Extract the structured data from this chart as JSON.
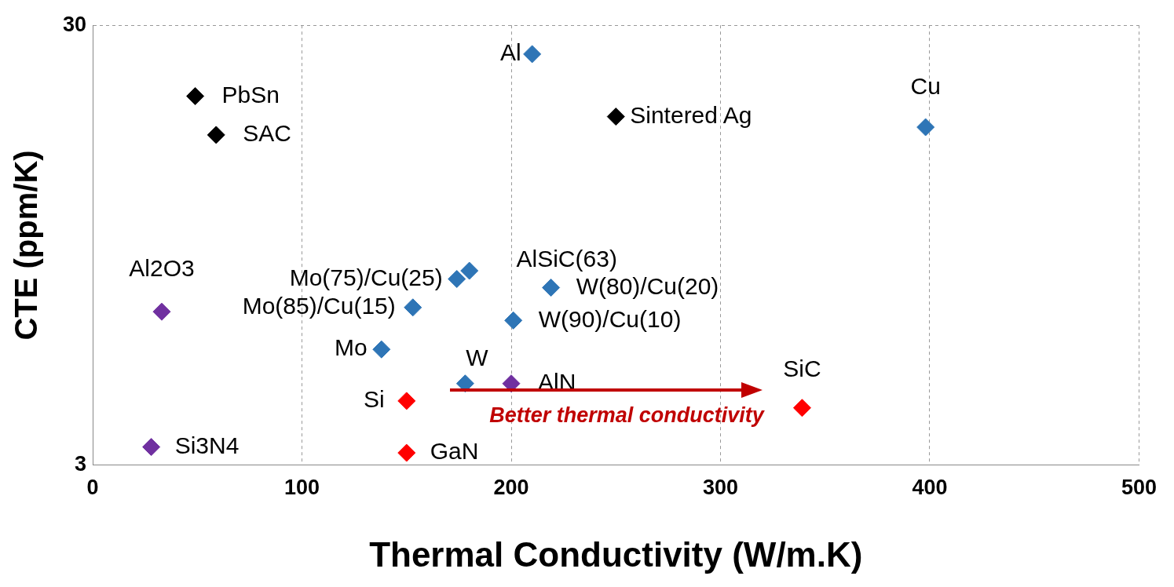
{
  "chart_data": {
    "type": "scatter",
    "xlabel": "Thermal Conductivity (W/m.K)",
    "ylabel": "CTE (ppm/K)",
    "x": [
      210,
      49,
      59,
      250,
      398,
      180,
      174,
      219,
      33,
      153,
      201,
      138,
      178,
      200,
      150,
      339,
      28,
      150
    ],
    "values": [
      25.8,
      20.7,
      16.9,
      18.6,
      17.6,
      8.3,
      7.95,
      7.6,
      6.7,
      6.85,
      6.4,
      5.5,
      4.6,
      4.6,
      4.2,
      4.05,
      3.3,
      3.2
    ],
    "colors": [
      "#2e75b6",
      "#000000",
      "#000000",
      "#000000",
      "#2e75b6",
      "#2e75b6",
      "#2e75b6",
      "#2e75b6",
      "#7030a0",
      "#2e75b6",
      "#2e75b6",
      "#2e75b6",
      "#2e75b6",
      "#7030a0",
      "#ff0000",
      "#ff0000",
      "#7030a0",
      "#ff0000"
    ],
    "xlim": [
      0,
      500
    ],
    "xticks": [
      0,
      100,
      200,
      300,
      400,
      500
    ],
    "ylim": [
      3,
      30
    ],
    "yticks": [
      3,
      30
    ],
    "log": "y",
    "grid": true,
    "marker": "diamond",
    "annotations": [
      {
        "text": "Al",
        "x": 210,
        "y": 25.8
      },
      {
        "text": "PbSn",
        "x": 49,
        "y": 20.7
      },
      {
        "text": "SAC",
        "x": 59,
        "y": 16.9
      },
      {
        "text": "Sintered Ag",
        "x": 250,
        "y": 18.6
      },
      {
        "text": "Cu",
        "x": 398,
        "y": 17.6
      },
      {
        "text": "AlSiC(63)",
        "x": 180,
        "y": 8.3
      },
      {
        "text": "Mo(75)/Cu(25)",
        "x": 174,
        "y": 7.95
      },
      {
        "text": "W(80)/Cu(20)",
        "x": 219,
        "y": 7.6
      },
      {
        "text": "Al2O3",
        "x": 33,
        "y": 6.7
      },
      {
        "text": "Mo(85)/Cu(15)",
        "x": 153,
        "y": 6.85
      },
      {
        "text": "W(90)/Cu(10)",
        "x": 201,
        "y": 6.4
      },
      {
        "text": "Mo",
        "x": 138,
        "y": 5.5
      },
      {
        "text": "W",
        "x": 178,
        "y": 4.6
      },
      {
        "text": "AlN",
        "x": 200,
        "y": 4.6
      },
      {
        "text": "Si",
        "x": 150,
        "y": 4.2
      },
      {
        "text": "SiC",
        "x": 339,
        "y": 4.05
      },
      {
        "text": "Si3N4",
        "x": 28,
        "y": 3.3
      },
      {
        "text": "GaN",
        "x": 150,
        "y": 3.2
      },
      "Better thermal conductivity"
    ]
  }
}
